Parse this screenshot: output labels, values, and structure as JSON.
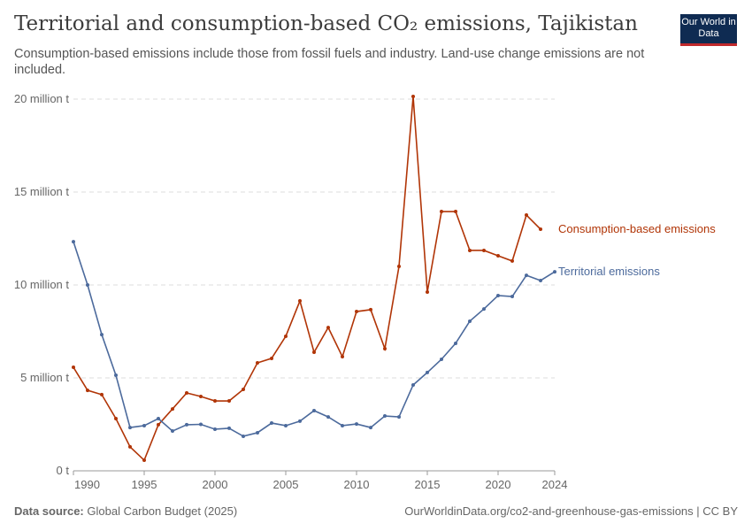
{
  "title": "Territorial and consumption-based CO₂ emissions, Tajikistan",
  "subtitle": "Consumption-based emissions include those from fossil fuels and industry. Land-use change emissions are not included.",
  "logo": "Our World in Data",
  "footer": {
    "source_label": "Data source:",
    "source": "Global Carbon Budget (2025)",
    "url": "OurWorldinData.org/co2-and-greenhouse-gas-emissions | CC BY"
  },
  "chart_data": {
    "type": "line",
    "xlim": [
      1990,
      2024
    ],
    "ylim": [
      0,
      20000000
    ],
    "x_ticks": [
      1990,
      1995,
      2000,
      2005,
      2010,
      2015,
      2020,
      2024
    ],
    "y_ticks": [
      {
        "v": 0,
        "label": "0 t"
      },
      {
        "v": 5000000,
        "label": "5 million t"
      },
      {
        "v": 10000000,
        "label": "10 million t"
      },
      {
        "v": 15000000,
        "label": "15 million t"
      },
      {
        "v": 20000000,
        "label": "20 million t"
      }
    ],
    "grid": true,
    "legend": "inline-right",
    "series": [
      {
        "name": "Consumption-based emissions",
        "color": "#b13507",
        "x": [
          1990,
          1991,
          1992,
          1993,
          1994,
          1995,
          1996,
          1997,
          1998,
          1999,
          2000,
          2001,
          2002,
          2003,
          2004,
          2005,
          2006,
          2007,
          2008,
          2009,
          2010,
          2011,
          2012,
          2013,
          2014,
          2015,
          2016,
          2017,
          2018,
          2019,
          2020,
          2021,
          2022,
          2023
        ],
        "values": [
          5570000,
          4330000,
          4100000,
          2810000,
          1290000,
          570000,
          2480000,
          3330000,
          4190000,
          4000000,
          3760000,
          3760000,
          4380000,
          5810000,
          6050000,
          7240000,
          9140000,
          6380000,
          7710000,
          6140000,
          8570000,
          8670000,
          6570000,
          11000000,
          20140000,
          9620000,
          13950000,
          13950000,
          11860000,
          11860000,
          11570000,
          11290000,
          13760000,
          13000000
        ]
      },
      {
        "name": "Territorial emissions",
        "color": "#4c6a9c",
        "x": [
          1990,
          1991,
          1992,
          1993,
          1994,
          1995,
          1996,
          1997,
          1998,
          1999,
          2000,
          2001,
          2002,
          2003,
          2004,
          2005,
          2006,
          2007,
          2008,
          2009,
          2010,
          2011,
          2012,
          2013,
          2014,
          2015,
          2016,
          2017,
          2018,
          2019,
          2020,
          2021,
          2022,
          2023,
          2024
        ],
        "values": [
          12330000,
          10000000,
          7330000,
          5140000,
          2330000,
          2430000,
          2810000,
          2140000,
          2480000,
          2500000,
          2240000,
          2290000,
          1860000,
          2050000,
          2570000,
          2430000,
          2670000,
          3240000,
          2900000,
          2430000,
          2520000,
          2330000,
          2950000,
          2900000,
          4620000,
          5290000,
          6000000,
          6860000,
          8050000,
          8710000,
          9430000,
          9380000,
          10520000,
          10240000,
          10710000
        ]
      }
    ]
  }
}
